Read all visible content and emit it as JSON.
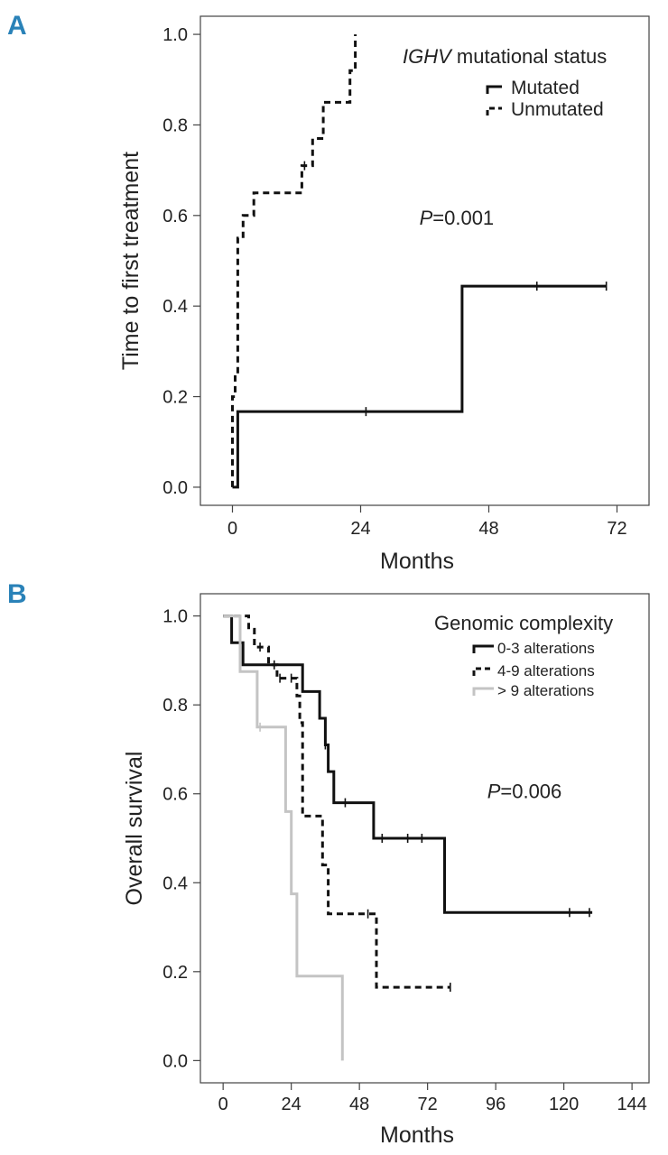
{
  "colors": {
    "panel_letter": "#2a82b8",
    "black": "#111111",
    "gray": "#c4c4c4"
  },
  "chart_data": [
    {
      "id": "A",
      "type": "line",
      "panel_label": "A",
      "title": "",
      "xlabel": "Months",
      "ylabel": "Time to first treatment",
      "xlim": [
        -6,
        78
      ],
      "ylim": [
        -0.04,
        1.04
      ],
      "xticks": [
        0,
        24,
        48,
        72
      ],
      "yticks": [
        "0.0",
        "0.2",
        "0.4",
        "0.6",
        "0.8",
        "1.0"
      ],
      "legend": {
        "position": "top-right",
        "title_italic": "IGHV",
        "title_rest": " mutational status",
        "entries": [
          "Mutated",
          "Unmutated"
        ]
      },
      "annotation": {
        "italic": "P",
        "rest": "=0.001",
        "x": 35,
        "y": 0.58
      },
      "series": [
        {
          "name": "Mutated",
          "style": "solid",
          "color": "#111111",
          "points": [
            [
              0,
              0
            ],
            [
              1,
              0
            ],
            [
              1,
              0.167
            ],
            [
              43,
              0.167
            ],
            [
              43,
              0.444
            ],
            [
              70,
              0.444
            ]
          ],
          "censors": [
            [
              25,
              0.167
            ],
            [
              57,
              0.444
            ],
            [
              70,
              0.444
            ]
          ]
        },
        {
          "name": "Unmutated",
          "style": "dashed",
          "color": "#111111",
          "points": [
            [
              0,
              0
            ],
            [
              0,
              0.2
            ],
            [
              0.5,
              0.2
            ],
            [
              0.5,
              0.25
            ],
            [
              1,
              0.25
            ],
            [
              1,
              0.55
            ],
            [
              2,
              0.55
            ],
            [
              2,
              0.6
            ],
            [
              4,
              0.6
            ],
            [
              4,
              0.65
            ],
            [
              13,
              0.65
            ],
            [
              13,
              0.71
            ],
            [
              15,
              0.71
            ],
            [
              15,
              0.77
            ],
            [
              17,
              0.77
            ],
            [
              17,
              0.85
            ],
            [
              22,
              0.85
            ],
            [
              22,
              0.92
            ],
            [
              23,
              0.92
            ],
            [
              23,
              1.0
            ]
          ],
          "censors": [
            [
              13.5,
              0.71
            ]
          ]
        }
      ]
    },
    {
      "id": "B",
      "type": "line",
      "panel_label": "B",
      "title": "",
      "xlabel": "Months",
      "ylabel": "Overall survival",
      "xlim": [
        -8,
        150
      ],
      "ylim": [
        -0.05,
        1.05
      ],
      "xticks": [
        0,
        24,
        48,
        72,
        96,
        120,
        144
      ],
      "yticks": [
        "0.0",
        "0.2",
        "0.4",
        "0.6",
        "0.8",
        "1.0"
      ],
      "legend": {
        "position": "top-right",
        "title": "Genomic complexity",
        "entries": [
          "0-3 alterations",
          "4-9 alterations",
          "> 9 alterations"
        ]
      },
      "annotation": {
        "italic": "P",
        "rest": "=0.006",
        "x": 93,
        "y": 0.59
      },
      "series": [
        {
          "name": "0-3 alterations",
          "style": "solid",
          "color": "#111111",
          "points": [
            [
              0,
              1.0
            ],
            [
              3,
              1.0
            ],
            [
              3,
              0.94
            ],
            [
              7,
              0.94
            ],
            [
              7,
              0.89
            ],
            [
              28,
              0.89
            ],
            [
              28,
              0.83
            ],
            [
              34,
              0.83
            ],
            [
              34,
              0.77
            ],
            [
              36,
              0.77
            ],
            [
              36,
              0.71
            ],
            [
              37,
              0.71
            ],
            [
              37,
              0.65
            ],
            [
              39,
              0.65
            ],
            [
              39,
              0.58
            ],
            [
              53,
              0.58
            ],
            [
              53,
              0.5
            ],
            [
              78,
              0.5
            ],
            [
              78,
              0.333
            ],
            [
              130,
              0.333
            ]
          ],
          "censors": [
            [
              18,
              0.89
            ],
            [
              36,
              0.71
            ],
            [
              43,
              0.58
            ],
            [
              56,
              0.5
            ],
            [
              65,
              0.5
            ],
            [
              70,
              0.5
            ],
            [
              122,
              0.333
            ],
            [
              129,
              0.333
            ]
          ]
        },
        {
          "name": "4-9 alterations",
          "style": "dashed",
          "color": "#111111",
          "points": [
            [
              0,
              1.0
            ],
            [
              9,
              1.0
            ],
            [
              9,
              0.97
            ],
            [
              11,
              0.97
            ],
            [
              11,
              0.93
            ],
            [
              16,
              0.93
            ],
            [
              16,
              0.89
            ],
            [
              19,
              0.89
            ],
            [
              19,
              0.86
            ],
            [
              26,
              0.86
            ],
            [
              26,
              0.82
            ],
            [
              27,
              0.82
            ],
            [
              27,
              0.76
            ],
            [
              28,
              0.76
            ],
            [
              28,
              0.55
            ],
            [
              35,
              0.55
            ],
            [
              35,
              0.44
            ],
            [
              37,
              0.44
            ],
            [
              37,
              0.33
            ],
            [
              54,
              0.33
            ],
            [
              54,
              0.165
            ],
            [
              80,
              0.165
            ]
          ],
          "censors": [
            [
              13,
              0.93
            ],
            [
              20,
              0.86
            ],
            [
              24,
              0.86
            ],
            [
              51,
              0.33
            ],
            [
              80,
              0.165
            ]
          ]
        },
        {
          "name": "> 9 alterations",
          "style": "solid",
          "color": "#c4c4c4",
          "points": [
            [
              0,
              1.0
            ],
            [
              6,
              1.0
            ],
            [
              6,
              0.875
            ],
            [
              12,
              0.875
            ],
            [
              12,
              0.75
            ],
            [
              22,
              0.75
            ],
            [
              22,
              0.56
            ],
            [
              24,
              0.56
            ],
            [
              24,
              0.375
            ],
            [
              26,
              0.375
            ],
            [
              26,
              0.19
            ],
            [
              42,
              0.19
            ],
            [
              42,
              0.0
            ]
          ],
          "censors": [
            [
              13,
              0.75
            ]
          ]
        }
      ]
    }
  ]
}
